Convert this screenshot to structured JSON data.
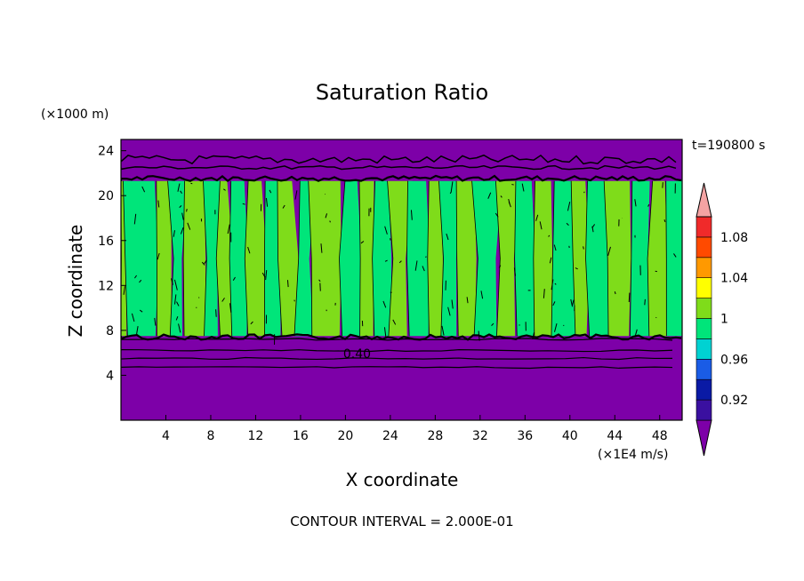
{
  "chart_data": {
    "type": "heatmap",
    "title": "Saturation Ratio",
    "xlabel": "X coordinate",
    "ylabel": "Z coordinate",
    "x_units": "(×1E4 m/s)",
    "y_units": "(×1000 m)",
    "time_label": "t=190800 s",
    "footer": "CONTOUR INTERVAL = 2.000E-01",
    "contour_label": "0.40",
    "xlim": [
      0,
      50
    ],
    "ylim": [
      0,
      25
    ],
    "x_ticks": [
      4,
      8,
      12,
      16,
      20,
      24,
      28,
      32,
      36,
      40,
      44,
      48
    ],
    "y_ticks": [
      4,
      8,
      12,
      16,
      20,
      24
    ],
    "colorbar": {
      "levels": [
        0.92,
        0.94,
        0.96,
        0.98,
        1.0,
        1.02,
        1.04,
        1.06,
        1.08,
        1.1
      ],
      "tick_labels": [
        "0.92",
        "0.96",
        "1",
        "1.04",
        "1.08"
      ],
      "tick_values": [
        0.92,
        0.96,
        1.0,
        1.04,
        1.08
      ],
      "colors": [
        "#7d00a8",
        "#3a10a0",
        "#0a1aa5",
        "#1a5ce6",
        "#00d2d2",
        "#00e57a",
        "#7fdc1a",
        "#ffff00",
        "#ff9900",
        "#ff4a00",
        "#f02a2a",
        "#f4a3a3"
      ]
    },
    "regions": {
      "lower_dry_layer_top_z": 7.5,
      "cloud_layer_top_z": 21.3,
      "upper_dry_layer_color": "#7d00a8",
      "cloud_layer_colors": [
        "#7fdc1a",
        "#00e57a"
      ]
    },
    "vertical_bands_x": [
      0.5,
      3.2,
      4.5,
      5.6,
      7.5,
      8.7,
      9.8,
      11.2,
      12.8,
      14.2,
      15.6,
      17.0,
      19.6,
      21.3,
      22.5,
      24.0,
      25.6,
      27.4,
      28.6,
      30.0,
      31.6,
      33.6,
      35.2,
      36.8,
      38.4,
      40.4,
      41.6,
      43.4,
      45.4,
      47.0,
      48.6
    ]
  }
}
